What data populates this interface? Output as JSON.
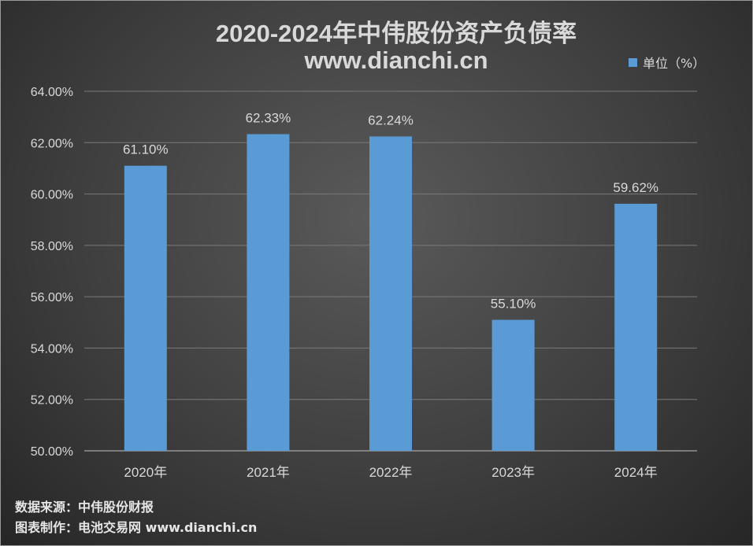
{
  "title": "2020-2024年中伟股份资产负债率",
  "subtitle": "www.dianchi.cn",
  "legend_label": "单位（%）",
  "footer": {
    "source": "数据来源：中伟股份财报",
    "credit": "图表制作：电池交易网 www.dianchi.cn"
  },
  "colors": {
    "bar": "#5b9bd5",
    "text": "#d9d9d9",
    "grid": "#7a7a7a"
  },
  "chart_data": {
    "type": "bar",
    "title": "2020-2024年中伟股份资产负债率",
    "subtitle": "www.dianchi.cn",
    "categories": [
      "2020年",
      "2021年",
      "2022年",
      "2023年",
      "2024年"
    ],
    "series": [
      {
        "name": "单位（%）",
        "values": [
          61.1,
          62.33,
          62.24,
          55.1,
          59.62
        ]
      }
    ],
    "data_labels": [
      "61.10%",
      "62.33%",
      "62.24%",
      "55.10%",
      "59.62%"
    ],
    "ylim": [
      50,
      64
    ],
    "yticks": [
      "50.00%",
      "52.00%",
      "54.00%",
      "56.00%",
      "58.00%",
      "60.00%",
      "62.00%",
      "64.00%"
    ],
    "grid": true,
    "legend_position": "top-right"
  }
}
